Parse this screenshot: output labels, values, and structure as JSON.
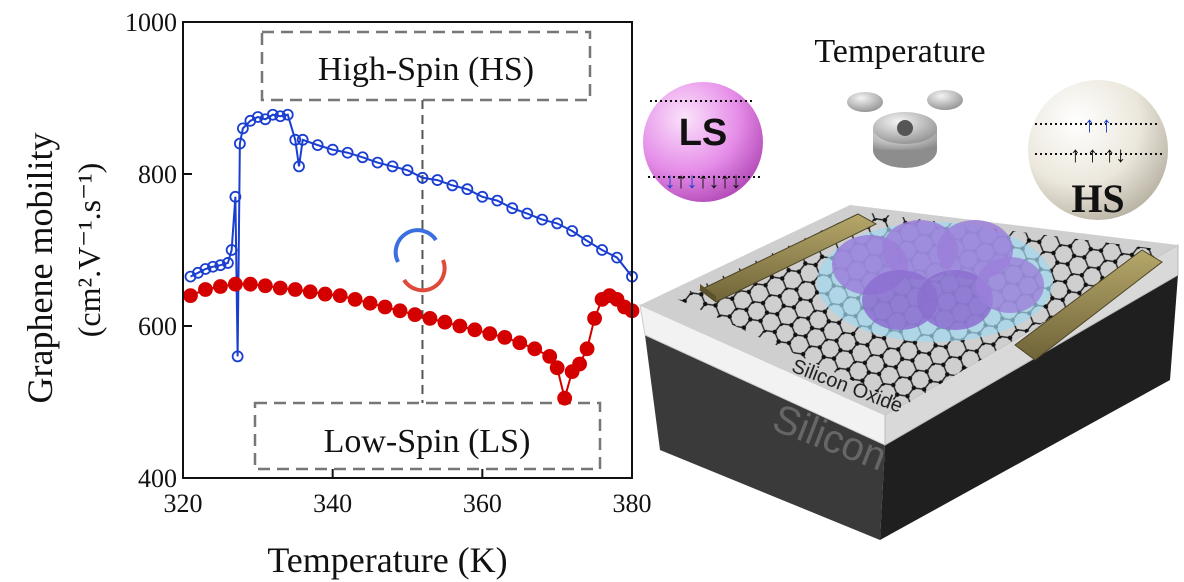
{
  "chart_data": {
    "type": "line",
    "xlabel": "Temperature (K)",
    "ylabel": [
      "Graphene mobility",
      "(cm².V⁻¹.s⁻¹)"
    ],
    "annotations": [
      "High-Spin (HS)",
      "Low-Spin (LS)"
    ],
    "vline": 352,
    "xlim": [
      320,
      380
    ],
    "ylim": [
      400,
      1000
    ],
    "xticks": [
      320,
      340,
      360,
      380
    ],
    "yticks": [
      400,
      600,
      800,
      1000
    ],
    "series": [
      {
        "color": "#1a3fd0",
        "marker": "open",
        "x": [
          321,
          322,
          323,
          324,
          325,
          326,
          326.5,
          327,
          327.3,
          327.6,
          328,
          329,
          330,
          331,
          332,
          333,
          334,
          335,
          335.5,
          336,
          338,
          340,
          342,
          344,
          346,
          348,
          350,
          352,
          354,
          356,
          358,
          360,
          362,
          364,
          366,
          368,
          370,
          372,
          374,
          376,
          378,
          380
        ],
        "values": [
          665,
          670,
          675,
          678,
          680,
          683,
          700,
          770,
          560,
          840,
          860,
          870,
          875,
          872,
          878,
          876,
          878,
          845,
          810,
          845,
          838,
          832,
          828,
          822,
          815,
          810,
          805,
          795,
          792,
          785,
          780,
          770,
          765,
          755,
          748,
          740,
          735,
          725,
          712,
          700,
          690,
          665
        ]
      },
      {
        "color": "#d40000",
        "marker": "filled",
        "x": [
          321,
          323,
          325,
          327,
          329,
          331,
          333,
          335,
          337,
          339,
          341,
          343,
          345,
          347,
          349,
          351,
          353,
          355,
          357,
          359,
          361,
          363,
          365,
          367,
          369,
          370,
          371,
          372,
          373,
          374,
          375,
          376,
          377,
          378,
          379,
          380
        ],
        "values": [
          640,
          648,
          652,
          655,
          655,
          653,
          650,
          648,
          645,
          642,
          640,
          635,
          630,
          625,
          620,
          615,
          610,
          605,
          600,
          595,
          590,
          585,
          578,
          570,
          560,
          545,
          505,
          540,
          550,
          570,
          610,
          635,
          640,
          635,
          625,
          620
        ]
      }
    ]
  },
  "diagram": {
    "title": "Temperature",
    "ls": "LS",
    "hs": "HS",
    "oxide": "Silicon Oxide",
    "substrate": "Silicon"
  }
}
